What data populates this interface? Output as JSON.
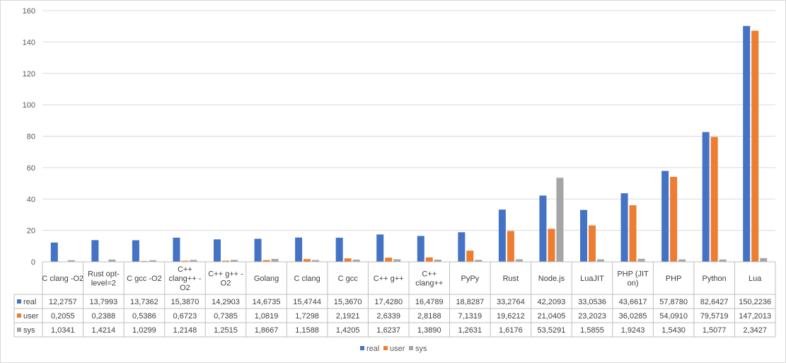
{
  "chart_data": {
    "type": "bar",
    "categories": [
      [
        "C clang -O2"
      ],
      [
        "Rust opt-",
        "level=2"
      ],
      [
        "C gcc -O2"
      ],
      [
        "C++",
        "clang++ -",
        "O2"
      ],
      [
        "C++ g++ -",
        "O2"
      ],
      [
        "Golang"
      ],
      [
        "C clang"
      ],
      [
        "C gcc"
      ],
      [
        "C++ g++"
      ],
      [
        "C++",
        "clang++"
      ],
      [
        "PyPy"
      ],
      [
        "Rust"
      ],
      [
        "Node.js"
      ],
      [
        "LuaJIT"
      ],
      [
        "PHP (JIT",
        "on)"
      ],
      [
        "PHP"
      ],
      [
        "Python"
      ],
      [
        "Lua"
      ]
    ],
    "series": [
      {
        "name": "real",
        "color": "#4472c4",
        "values": [
          12.2757,
          13.7993,
          13.7362,
          15.387,
          14.2903,
          14.6735,
          15.4744,
          15.367,
          17.428,
          16.4789,
          18.8287,
          33.2764,
          42.2093,
          33.0536,
          43.6617,
          57.878,
          82.6427,
          150.2236
        ],
        "labels": [
          "12,2757",
          "13,7993",
          "13,7362",
          "15,3870",
          "14,2903",
          "14,6735",
          "15,4744",
          "15,3670",
          "17,4280",
          "16,4789",
          "18,8287",
          "33,2764",
          "42,2093",
          "33,0536",
          "43,6617",
          "57,8780",
          "82,6427",
          "150,2236"
        ]
      },
      {
        "name": "user",
        "color": "#ed7d31",
        "values": [
          0.2055,
          0.2388,
          0.5386,
          0.6723,
          0.7385,
          1.0819,
          1.7298,
          2.1921,
          2.6339,
          2.8188,
          7.1319,
          19.6212,
          21.0405,
          23.2023,
          36.0285,
          54.091,
          79.5719,
          147.2013
        ],
        "labels": [
          "0,2055",
          "0,2388",
          "0,5386",
          "0,6723",
          "0,7385",
          "1,0819",
          "1,7298",
          "2,1921",
          "2,6339",
          "2,8188",
          "7,1319",
          "19,6212",
          "21,0405",
          "23,2023",
          "36,0285",
          "54,0910",
          "79,5719",
          "147,2013"
        ]
      },
      {
        "name": "sys",
        "color": "#a5a5a5",
        "values": [
          1.0341,
          1.4214,
          1.0299,
          1.2148,
          1.2515,
          1.8667,
          1.1588,
          1.4205,
          1.6237,
          1.389,
          1.2631,
          1.6176,
          53.5291,
          1.5855,
          1.9243,
          1.543,
          1.5077,
          2.3427
        ],
        "labels": [
          "1,0341",
          "1,4214",
          "1,0299",
          "1,2148",
          "1,2515",
          "1,8667",
          "1,1588",
          "1,4205",
          "1,6237",
          "1,3890",
          "1,2631",
          "1,6176",
          "53,5291",
          "1,5855",
          "1,9243",
          "1,5430",
          "1,5077",
          "2,3427"
        ]
      }
    ],
    "yticks": [
      "0",
      "20",
      "40",
      "60",
      "80",
      "100",
      "120",
      "140",
      "160"
    ],
    "ylim": [
      0,
      160
    ],
    "grid": true,
    "legend": "bottom",
    "data_table": true
  }
}
